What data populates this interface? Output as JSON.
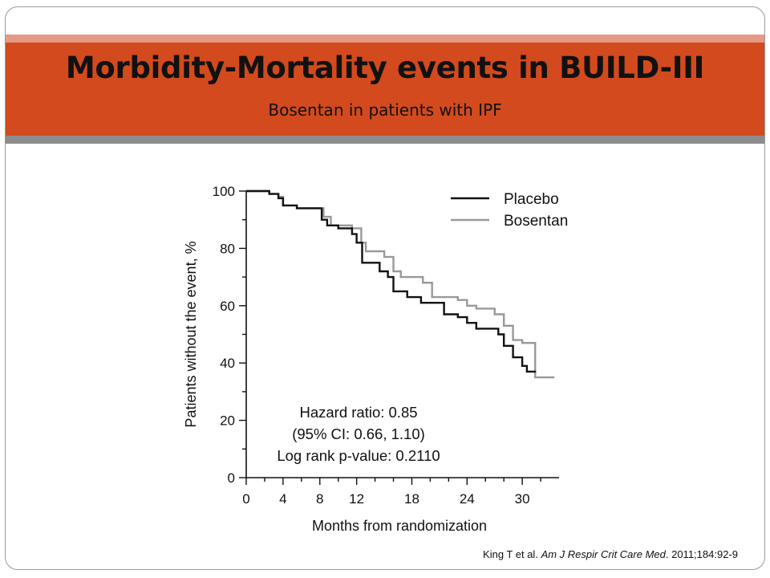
{
  "slide": {
    "title": "Morbidity-Mortality events in BUILD-III",
    "subtitle": "Bosentan in patients with IPF",
    "citation_authors": "King T et al.",
    "citation_journal": "Am J Respir Crit Care Med",
    "citation_ref": ". 2011;184:92-9"
  },
  "colors": {
    "header_band": "#d24a1d",
    "header_topline": "#e59a86",
    "header_bottom": "#8c8c8c",
    "placebo": "#111111",
    "bosentan": "#999999"
  },
  "chart_data": {
    "type": "line",
    "xlabel": "Months from randomization",
    "ylabel": "Patients without the event, %",
    "xlim": [
      0,
      34
    ],
    "ylim": [
      0,
      100
    ],
    "x_ticks": [
      0,
      4,
      8,
      12,
      18,
      24,
      30
    ],
    "y_ticks": [
      0,
      20,
      40,
      60,
      80,
      100
    ],
    "grid": false,
    "legend_position": "top-right",
    "series": [
      {
        "name": "Placebo",
        "style": "step",
        "x": [
          0,
          2.5,
          3.5,
          4,
          5.5,
          8.2,
          8.8,
          10,
          11.5,
          12,
          12.6,
          14.5,
          15.4,
          16,
          17.5,
          19,
          21.5,
          23,
          24,
          25,
          27.4,
          28,
          29,
          30,
          30.5,
          31.5
        ],
        "y": [
          100,
          99,
          97.5,
          95,
          94,
          90,
          88,
          87,
          85,
          82,
          75,
          72,
          70,
          65,
          63,
          61,
          57,
          56,
          54,
          52,
          50,
          46,
          42,
          39,
          37,
          37
        ]
      },
      {
        "name": "Bosentan",
        "style": "step",
        "x": [
          0,
          2.5,
          3.5,
          4,
          5.5,
          8.4,
          9.2,
          11.5,
          12.5,
          13,
          15,
          16,
          16.8,
          19.2,
          20.2,
          23,
          24,
          25,
          27,
          28,
          29,
          30,
          31.4,
          33.5
        ],
        "y": [
          100,
          99,
          98,
          95,
          94,
          91,
          88,
          87,
          82,
          79,
          77,
          72,
          70,
          68,
          63,
          62,
          60,
          59,
          57,
          53,
          48,
          47,
          35,
          35
        ]
      }
    ],
    "annotations": [
      "Hazard ratio: 0.85",
      "(95% CI: 0.66, 1.10)",
      "Log rank p-value: 0.2110"
    ]
  }
}
